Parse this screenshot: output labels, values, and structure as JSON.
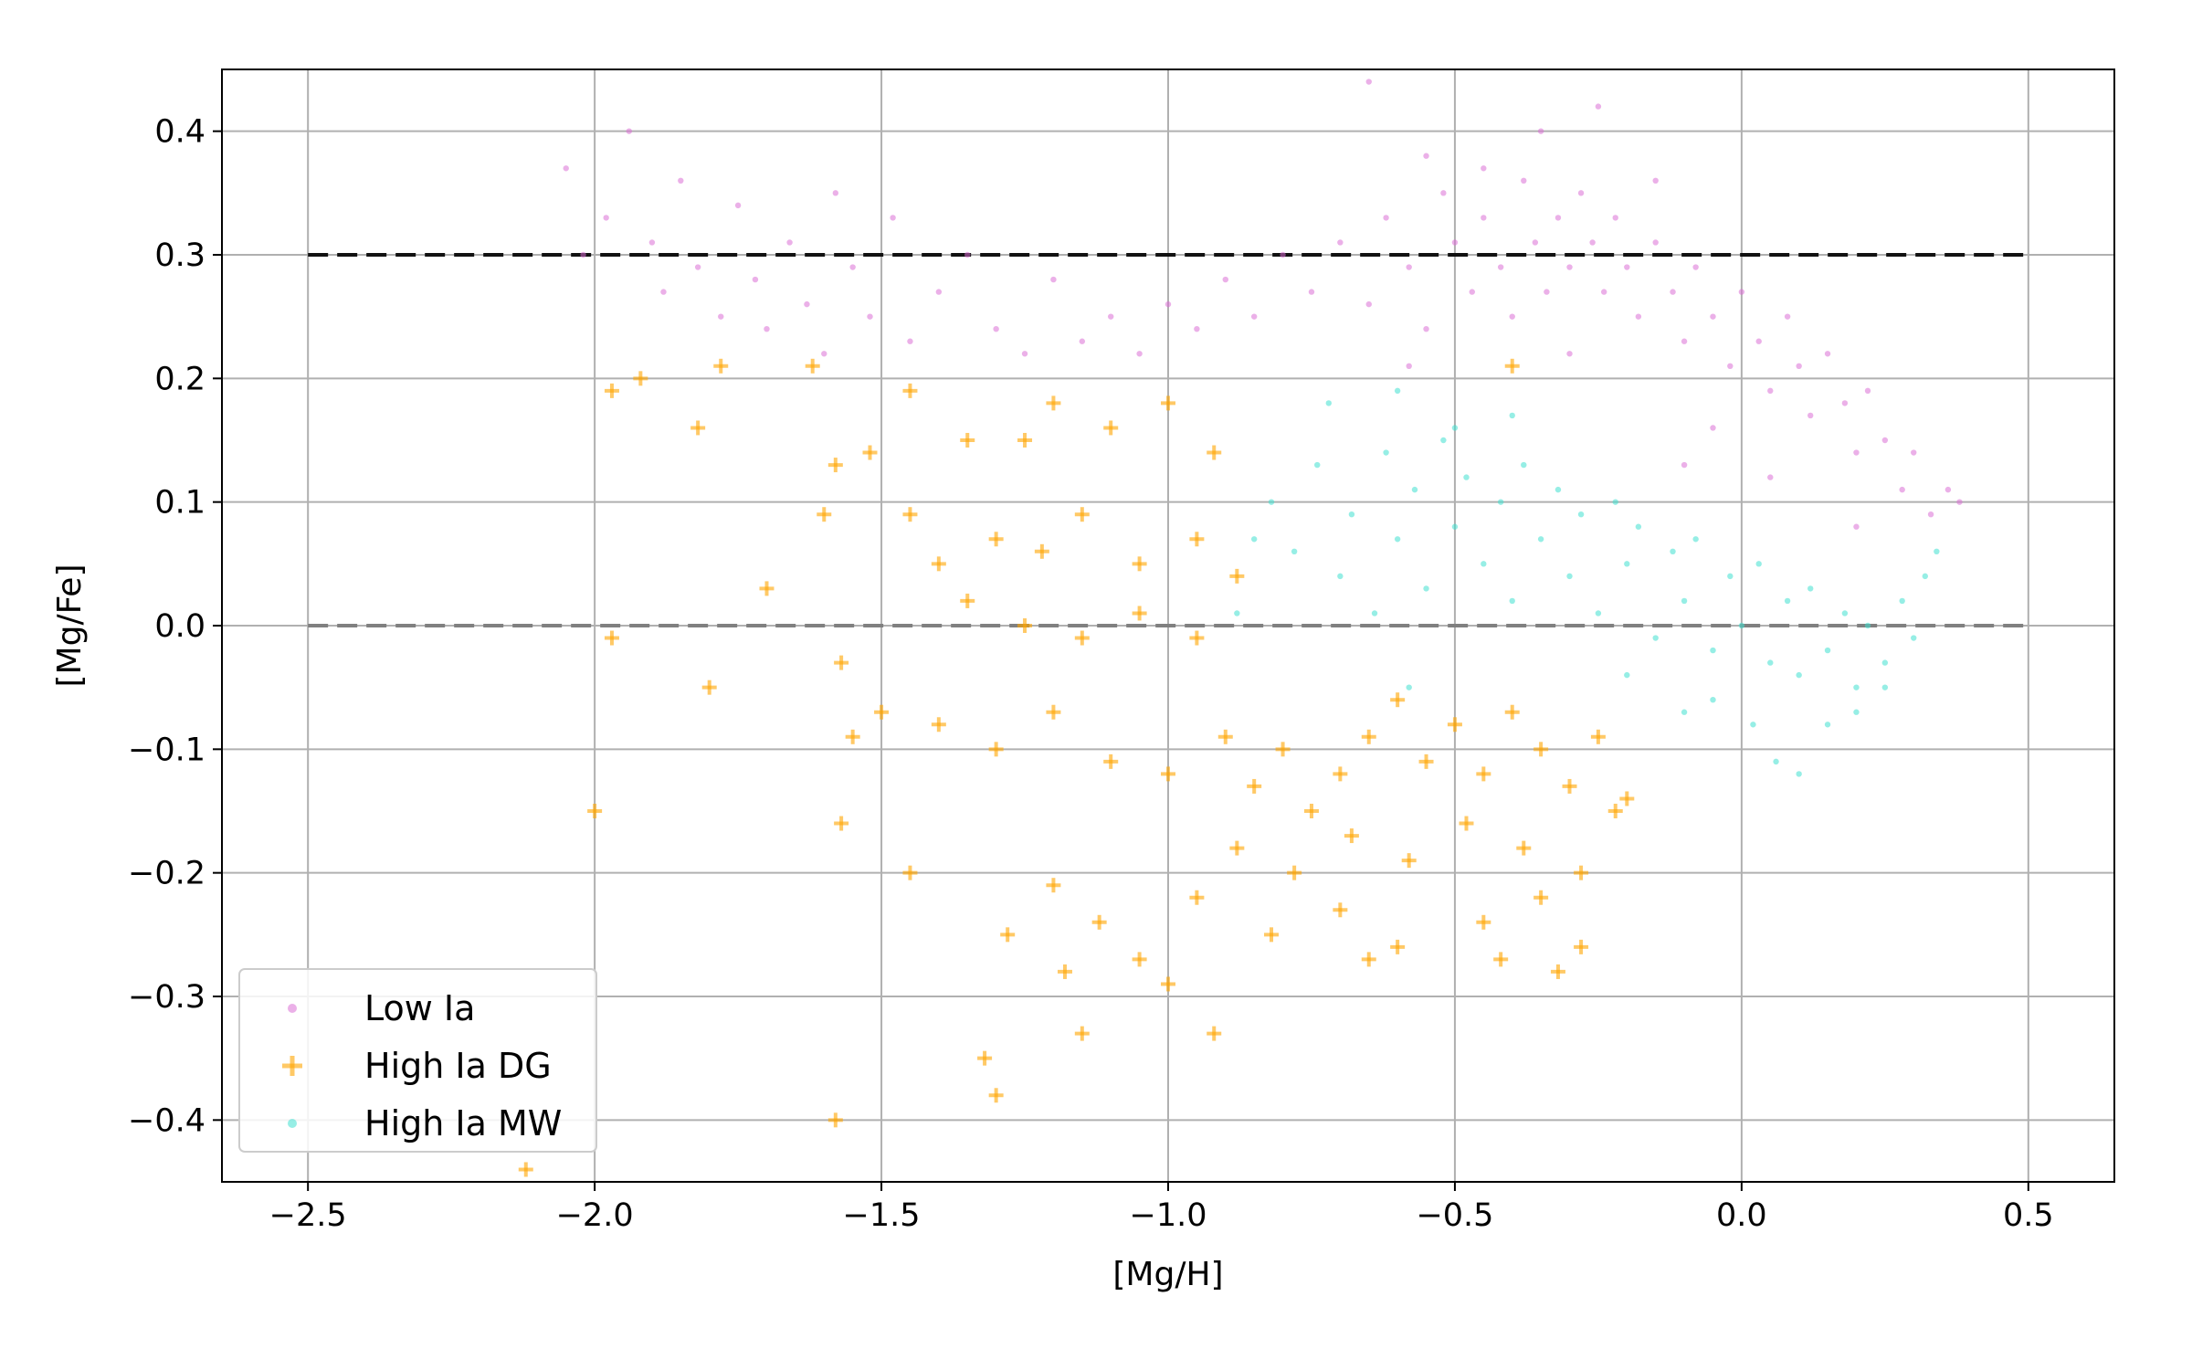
{
  "chart_data": {
    "type": "scatter",
    "title": "",
    "xlabel": "[Mg/H]",
    "ylabel": "[Mg/Fe]",
    "xlim": [
      -2.65,
      0.65
    ],
    "ylim": [
      -0.45,
      0.45
    ],
    "grid": true,
    "legend_position": "lower-left",
    "x_ticks": [
      {
        "value": -2.5,
        "label": "−2.5"
      },
      {
        "value": -2.0,
        "label": "−2.0"
      },
      {
        "value": -1.5,
        "label": "−1.5"
      },
      {
        "value": -1.0,
        "label": "−1.0"
      },
      {
        "value": -0.5,
        "label": "−0.5"
      },
      {
        "value": 0.0,
        "label": "0.0"
      },
      {
        "value": 0.5,
        "label": "0.5"
      }
    ],
    "y_ticks": [
      {
        "value": 0.4,
        "label": "0.4"
      },
      {
        "value": 0.3,
        "label": "0.3"
      },
      {
        "value": 0.2,
        "label": "0.2"
      },
      {
        "value": 0.1,
        "label": "0.1"
      },
      {
        "value": 0.0,
        "label": "0.0"
      },
      {
        "value": -0.1,
        "label": "−0.1"
      },
      {
        "value": -0.2,
        "label": "−0.2"
      },
      {
        "value": -0.3,
        "label": "−0.3"
      },
      {
        "value": -0.4,
        "label": "−0.4"
      }
    ],
    "reference_lines": [
      {
        "name": "low-ia-plateau-line",
        "y": 0.3,
        "x_range": [
          -2.5,
          0.5
        ],
        "color": "#111111",
        "style": "dashed"
      },
      {
        "name": "solar-ratio-line",
        "y": 0.0,
        "x_range": [
          -2.5,
          0.5
        ],
        "color": "#808080",
        "style": "dashed"
      }
    ],
    "series": [
      {
        "name": "Low Ia",
        "marker": "dot",
        "color": "#da70d6",
        "points": [
          [
            -2.05,
            0.37
          ],
          [
            -2.02,
            0.3
          ],
          [
            -1.98,
            0.33
          ],
          [
            -1.94,
            0.4
          ],
          [
            -1.9,
            0.31
          ],
          [
            -1.88,
            0.27
          ],
          [
            -1.85,
            0.36
          ],
          [
            -1.82,
            0.29
          ],
          [
            -1.78,
            0.25
          ],
          [
            -1.75,
            0.34
          ],
          [
            -1.72,
            0.28
          ],
          [
            -1.7,
            0.24
          ],
          [
            -1.66,
            0.31
          ],
          [
            -1.63,
            0.26
          ],
          [
            -1.6,
            0.22
          ],
          [
            -1.58,
            0.35
          ],
          [
            -1.55,
            0.29
          ],
          [
            -1.52,
            0.25
          ],
          [
            -1.48,
            0.33
          ],
          [
            -1.45,
            0.23
          ],
          [
            -1.4,
            0.27
          ],
          [
            -1.35,
            0.3
          ],
          [
            -1.3,
            0.24
          ],
          [
            -1.25,
            0.22
          ],
          [
            -1.2,
            0.28
          ],
          [
            -1.15,
            0.23
          ],
          [
            -1.1,
            0.25
          ],
          [
            -1.05,
            0.22
          ],
          [
            -1.0,
            0.26
          ],
          [
            -0.95,
            0.24
          ],
          [
            -0.9,
            0.28
          ],
          [
            -0.85,
            0.25
          ],
          [
            -0.8,
            0.3
          ],
          [
            -0.75,
            0.27
          ],
          [
            -0.7,
            0.31
          ],
          [
            -0.65,
            0.26
          ],
          [
            -0.62,
            0.33
          ],
          [
            -0.58,
            0.29
          ],
          [
            -0.55,
            0.24
          ],
          [
            -0.52,
            0.35
          ],
          [
            -0.5,
            0.31
          ],
          [
            -0.47,
            0.27
          ],
          [
            -0.45,
            0.33
          ],
          [
            -0.42,
            0.29
          ],
          [
            -0.4,
            0.25
          ],
          [
            -0.38,
            0.36
          ],
          [
            -0.36,
            0.31
          ],
          [
            -0.34,
            0.27
          ],
          [
            -0.32,
            0.33
          ],
          [
            -0.3,
            0.29
          ],
          [
            -0.28,
            0.35
          ],
          [
            -0.26,
            0.31
          ],
          [
            -0.24,
            0.27
          ],
          [
            -0.22,
            0.33
          ],
          [
            -0.2,
            0.29
          ],
          [
            -0.18,
            0.25
          ],
          [
            -0.15,
            0.31
          ],
          [
            -0.12,
            0.27
          ],
          [
            -0.1,
            0.23
          ],
          [
            -0.08,
            0.29
          ],
          [
            -0.05,
            0.25
          ],
          [
            -0.02,
            0.21
          ],
          [
            0.0,
            0.27
          ],
          [
            0.03,
            0.23
          ],
          [
            0.05,
            0.19
          ],
          [
            0.08,
            0.25
          ],
          [
            0.1,
            0.21
          ],
          [
            0.12,
            0.17
          ],
          [
            0.15,
            0.22
          ],
          [
            0.18,
            0.18
          ],
          [
            0.2,
            0.14
          ],
          [
            0.22,
            0.19
          ],
          [
            0.25,
            0.15
          ],
          [
            0.28,
            0.11
          ],
          [
            0.3,
            0.14
          ],
          [
            0.33,
            0.09
          ],
          [
            0.36,
            0.11
          ],
          [
            0.38,
            0.1
          ],
          [
            -0.35,
            0.4
          ],
          [
            -0.55,
            0.38
          ],
          [
            -0.25,
            0.42
          ],
          [
            -0.65,
            0.44
          ],
          [
            -0.45,
            0.37
          ],
          [
            -0.15,
            0.36
          ],
          [
            -0.58,
            0.21
          ],
          [
            -0.3,
            0.22
          ],
          [
            -0.05,
            0.16
          ],
          [
            0.05,
            0.12
          ],
          [
            -0.1,
            0.13
          ],
          [
            0.2,
            0.08
          ]
        ]
      },
      {
        "name": "High Ia DG",
        "marker": "plus",
        "color": "#ffa500",
        "points": [
          [
            -1.97,
            0.19
          ],
          [
            -1.92,
            0.2
          ],
          [
            -1.78,
            0.21
          ],
          [
            -1.82,
            0.16
          ],
          [
            -1.62,
            0.21
          ],
          [
            -1.45,
            0.19
          ],
          [
            -1.58,
            0.13
          ],
          [
            -1.52,
            0.14
          ],
          [
            -1.35,
            0.15
          ],
          [
            -1.25,
            0.15
          ],
          [
            -1.2,
            0.18
          ],
          [
            -1.1,
            0.16
          ],
          [
            -1.0,
            0.18
          ],
          [
            -0.92,
            0.14
          ],
          [
            -1.6,
            0.09
          ],
          [
            -1.45,
            0.09
          ],
          [
            -1.4,
            0.05
          ],
          [
            -1.3,
            0.07
          ],
          [
            -1.22,
            0.06
          ],
          [
            -1.15,
            0.09
          ],
          [
            -1.05,
            0.05
          ],
          [
            -0.95,
            0.07
          ],
          [
            -0.88,
            0.04
          ],
          [
            -1.35,
            0.02
          ],
          [
            -1.25,
            0.0
          ],
          [
            -1.15,
            -0.01
          ],
          [
            -1.05,
            0.01
          ],
          [
            -0.95,
            -0.01
          ],
          [
            -1.7,
            0.03
          ],
          [
            -1.97,
            -0.01
          ],
          [
            -1.8,
            -0.05
          ],
          [
            -1.57,
            -0.03
          ],
          [
            -1.55,
            -0.09
          ],
          [
            -1.5,
            -0.07
          ],
          [
            -1.4,
            -0.08
          ],
          [
            -1.3,
            -0.1
          ],
          [
            -1.2,
            -0.07
          ],
          [
            -1.1,
            -0.11
          ],
          [
            -1.0,
            -0.12
          ],
          [
            -0.9,
            -0.09
          ],
          [
            -0.85,
            -0.13
          ],
          [
            -0.8,
            -0.1
          ],
          [
            -0.75,
            -0.15
          ],
          [
            -0.7,
            -0.12
          ],
          [
            -0.65,
            -0.09
          ],
          [
            -0.6,
            -0.06
          ],
          [
            -0.55,
            -0.11
          ],
          [
            -0.5,
            -0.08
          ],
          [
            -0.45,
            -0.12
          ],
          [
            -0.4,
            -0.07
          ],
          [
            -0.35,
            -0.1
          ],
          [
            -0.3,
            -0.13
          ],
          [
            -0.25,
            -0.09
          ],
          [
            -0.22,
            -0.15
          ],
          [
            -0.88,
            -0.18
          ],
          [
            -0.78,
            -0.2
          ],
          [
            -0.68,
            -0.17
          ],
          [
            -0.58,
            -0.19
          ],
          [
            -0.48,
            -0.16
          ],
          [
            -0.38,
            -0.18
          ],
          [
            -0.28,
            -0.2
          ],
          [
            -0.2,
            -0.14
          ],
          [
            -0.95,
            -0.22
          ],
          [
            -0.82,
            -0.25
          ],
          [
            -0.7,
            -0.23
          ],
          [
            -0.6,
            -0.26
          ],
          [
            -0.45,
            -0.24
          ],
          [
            -0.35,
            -0.22
          ],
          [
            -0.28,
            -0.26
          ],
          [
            -1.2,
            -0.21
          ],
          [
            -1.12,
            -0.24
          ],
          [
            -1.05,
            -0.27
          ],
          [
            -1.0,
            -0.29
          ],
          [
            -1.18,
            -0.28
          ],
          [
            -1.28,
            -0.25
          ],
          [
            -1.15,
            -0.33
          ],
          [
            -0.92,
            -0.33
          ],
          [
            -1.32,
            -0.35
          ],
          [
            -1.3,
            -0.38
          ],
          [
            -1.57,
            -0.16
          ],
          [
            -1.58,
            -0.4
          ],
          [
            -2.0,
            -0.15
          ],
          [
            -2.12,
            -0.44
          ],
          [
            -0.65,
            -0.27
          ],
          [
            -0.42,
            -0.27
          ],
          [
            -0.32,
            -0.28
          ],
          [
            -1.45,
            -0.2
          ],
          [
            -0.4,
            0.21
          ]
        ]
      },
      {
        "name": "High Ia MW",
        "marker": "dot",
        "color": "#40e0d0",
        "points": [
          [
            -0.82,
            0.1
          ],
          [
            -0.78,
            0.06
          ],
          [
            -0.74,
            0.13
          ],
          [
            -0.7,
            0.04
          ],
          [
            -0.68,
            0.09
          ],
          [
            -0.64,
            0.01
          ],
          [
            -0.62,
            0.14
          ],
          [
            -0.6,
            0.07
          ],
          [
            -0.57,
            0.11
          ],
          [
            -0.55,
            0.03
          ],
          [
            -0.52,
            0.15
          ],
          [
            -0.5,
            0.08
          ],
          [
            -0.48,
            0.12
          ],
          [
            -0.45,
            0.05
          ],
          [
            -0.42,
            0.1
          ],
          [
            -0.4,
            0.02
          ],
          [
            -0.38,
            0.13
          ],
          [
            -0.35,
            0.07
          ],
          [
            -0.32,
            0.11
          ],
          [
            -0.3,
            0.04
          ],
          [
            -0.28,
            0.09
          ],
          [
            -0.25,
            0.01
          ],
          [
            -0.22,
            0.1
          ],
          [
            -0.2,
            0.05
          ],
          [
            -0.18,
            0.08
          ],
          [
            -0.15,
            -0.01
          ],
          [
            -0.12,
            0.06
          ],
          [
            -0.1,
            0.02
          ],
          [
            -0.08,
            0.07
          ],
          [
            -0.05,
            -0.02
          ],
          [
            -0.02,
            0.04
          ],
          [
            0.0,
            0.0
          ],
          [
            0.03,
            0.05
          ],
          [
            0.05,
            -0.03
          ],
          [
            0.08,
            0.02
          ],
          [
            0.1,
            -0.04
          ],
          [
            0.12,
            0.03
          ],
          [
            0.15,
            -0.02
          ],
          [
            0.18,
            0.01
          ],
          [
            0.2,
            -0.05
          ],
          [
            0.22,
            0.0
          ],
          [
            0.25,
            -0.03
          ],
          [
            0.28,
            0.02
          ],
          [
            0.3,
            -0.01
          ],
          [
            0.32,
            0.04
          ],
          [
            0.34,
            0.06
          ],
          [
            -0.72,
            0.18
          ],
          [
            -0.6,
            0.19
          ],
          [
            -0.5,
            0.16
          ],
          [
            -0.4,
            0.17
          ],
          [
            -0.88,
            0.01
          ],
          [
            -0.85,
            0.07
          ],
          [
            -0.58,
            -0.05
          ],
          [
            -0.1,
            -0.07
          ],
          [
            0.02,
            -0.08
          ],
          [
            0.15,
            -0.08
          ],
          [
            0.2,
            -0.07
          ],
          [
            -0.05,
            -0.06
          ],
          [
            0.06,
            -0.11
          ],
          [
            0.1,
            -0.12
          ],
          [
            -0.2,
            -0.04
          ],
          [
            0.25,
            -0.05
          ]
        ]
      }
    ],
    "legend": [
      {
        "label": "Low Ia",
        "marker": "dot",
        "color": "#da70d6"
      },
      {
        "label": "High Ia DG",
        "marker": "plus",
        "color": "#ffa500"
      },
      {
        "label": "High Ia MW",
        "marker": "dot",
        "color": "#40e0d0"
      }
    ]
  }
}
